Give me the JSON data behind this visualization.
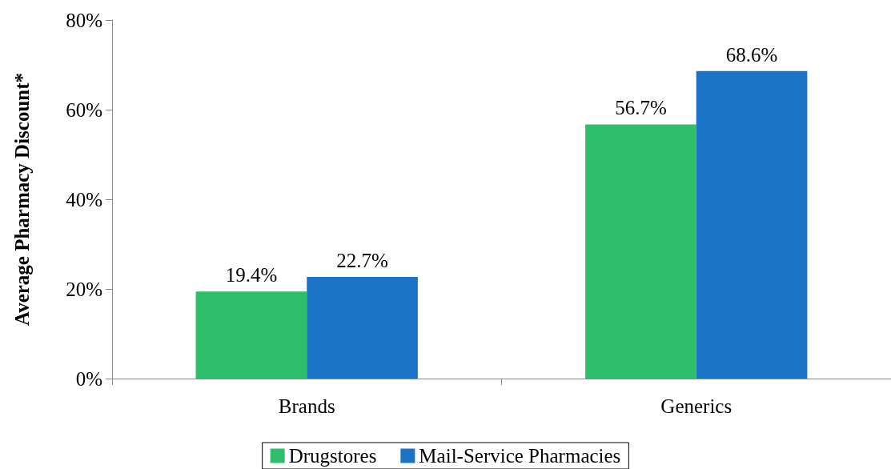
{
  "chart_data": {
    "type": "bar",
    "ylabel": "Average Pharmacy Discount*",
    "categories": [
      "Brands",
      "Generics"
    ],
    "series": [
      {
        "name": "Drugstores",
        "color": "#2fbf6a",
        "values": [
          19.4,
          56.7
        ],
        "value_labels": [
          "19.4%",
          "56.7%"
        ]
      },
      {
        "name": "Mail-Service Pharmacies",
        "color": "#1a73c4",
        "values": [
          22.7,
          68.6
        ],
        "value_labels": [
          "22.7%",
          "68.6%"
        ]
      }
    ],
    "ylim": [
      0,
      80
    ],
    "yticks": [
      {
        "value": 0,
        "label": "0%"
      },
      {
        "value": 20,
        "label": "20%"
      },
      {
        "value": 40,
        "label": "40%"
      },
      {
        "value": 60,
        "label": "60%"
      },
      {
        "value": 80,
        "label": "80%"
      }
    ],
    "grid": false,
    "legend": "bottom"
  }
}
